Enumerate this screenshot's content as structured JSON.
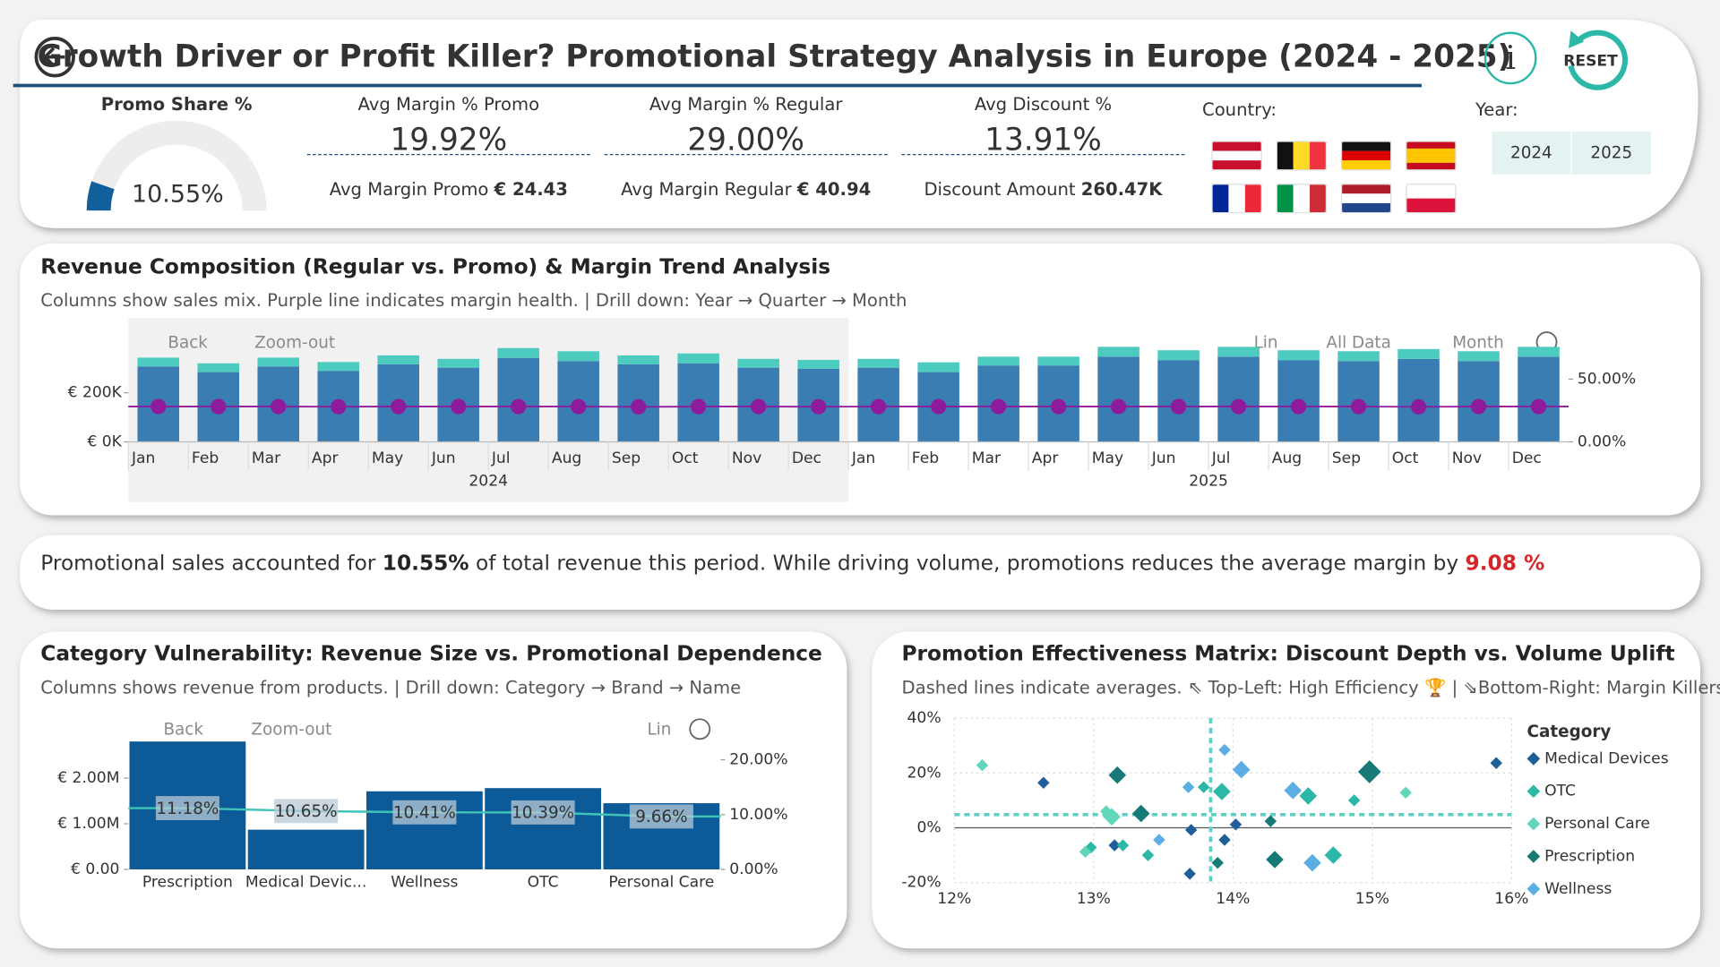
{
  "header": {
    "title": "Growth Driver or Profit Killer? Promotional Strategy Analysis in Europe (2024 - 2025)",
    "reset": "RESET"
  },
  "kpis": {
    "promo_share": {
      "label": "Promo Share %",
      "value": 10.55,
      "value_label": "10.55%",
      "range": [
        0,
        100
      ],
      "color": "#11609c"
    },
    "cards": [
      {
        "label": "Avg Margin % Promo",
        "value": "19.92%",
        "sub_label": "Avg Margin Promo",
        "sub_value": "€ 24.43"
      },
      {
        "label": "Avg Margin % Regular",
        "value": "29.00%",
        "sub_label": "Avg Margin Regular",
        "sub_value": "€ 40.94"
      },
      {
        "label": "Avg Discount %",
        "value": "13.91%",
        "sub_label": "Discount Amount",
        "sub_value": "260.47K"
      }
    ]
  },
  "filters": {
    "country_label": "Country:",
    "year_label": "Year:",
    "years": [
      "2024",
      "2025"
    ]
  },
  "insight": {
    "parts": [
      "Promotional sales accounted for ",
      "10.55%",
      " of total revenue this period. While driving volume, promotions reduces the average margin by ",
      "9.08 %"
    ]
  },
  "chart_data": [
    {
      "type": "stacked_bar_line",
      "title": "Revenue Composition (Regular vs. Promo) & Margin Trend Analysis",
      "subtitle": "Columns show sales mix. Purple line indicates margin health. | Drill down: Year → Quarter → Month",
      "toolbar": [
        "Back",
        "Zoom-out",
        "Lin",
        "All Data",
        "Month"
      ],
      "categories": [
        "Jan",
        "Feb",
        "Mar",
        "Apr",
        "May",
        "Jun",
        "Jul",
        "Aug",
        "Sep",
        "Oct",
        "Nov",
        "Dec",
        "Jan",
        "Feb",
        "Mar",
        "Apr",
        "May",
        "Jun",
        "Jul",
        "Aug",
        "Sep",
        "Oct",
        "Nov",
        "Dec"
      ],
      "groups": [
        "2024",
        "2025"
      ],
      "series": [
        {
          "type": "bar",
          "color": "#3a7db2",
          "values": [
            307000,
            284000,
            307000,
            289000,
            316000,
            302000,
            342000,
            329000,
            316000,
            320000,
            302000,
            298000,
            302000,
            284000,
            311000,
            311000,
            347000,
            333000,
            347000,
            333000,
            329000,
            338000,
            329000,
            347000
          ]
        },
        {
          "type": "bar",
          "color": "#4ccbbf",
          "values": [
            36000,
            36000,
            36000,
            36000,
            36000,
            36000,
            40000,
            40000,
            36000,
            40000,
            36000,
            36000,
            36000,
            40000,
            36000,
            36000,
            40000,
            40000,
            40000,
            40000,
            40000,
            40000,
            40000,
            40000
          ]
        },
        {
          "type": "line",
          "axis": "y2",
          "color": "#8e1a9c",
          "values": [
            28.1,
            28.1,
            28.1,
            28.0,
            28.1,
            28.1,
            28.1,
            28.1,
            27.9,
            28.1,
            28.1,
            28.0,
            28.1,
            28.1,
            28.1,
            28.1,
            28.1,
            28.1,
            28.1,
            28.1,
            28.1,
            27.9,
            28.1,
            28.1
          ]
        }
      ],
      "ylim": [
        0,
        460000
      ],
      "yticks": [
        {
          "value": 0,
          "label": "€ 0K"
        },
        {
          "value": 200000,
          "label": "€ 200K"
        }
      ],
      "y2lim": [
        0,
        90
      ],
      "y2ticks": [
        {
          "value": 0,
          "label": "0.00%"
        },
        {
          "value": 50,
          "label": "50.00%"
        }
      ]
    },
    {
      "type": "bar_line",
      "title": "Category Vulnerability: Revenue Size vs. Promotional Dependence",
      "subtitle": "Columns shows revenue from products. | Drill down: Category → Brand → Name",
      "toolbar": [
        "Back",
        "Zoom-out",
        "Lin"
      ],
      "categories": [
        "Prescription",
        "Medical Devic...",
        "Wellness",
        "OTC",
        "Personal Care"
      ],
      "series": [
        {
          "type": "bar",
          "color": "#0d5a99",
          "values": [
            2800000,
            870000,
            1710000,
            1780000,
            1450000
          ]
        },
        {
          "type": "line",
          "axis": "y2",
          "color": "#3fc3b6",
          "values": [
            11.18,
            10.65,
            10.41,
            10.39,
            9.66
          ],
          "value_labels": [
            "11.18%",
            "10.65%",
            "10.41%",
            "10.39%",
            "9.66%"
          ]
        }
      ],
      "ylim": [
        0,
        3000000
      ],
      "yticks": [
        {
          "value": 0,
          "label": "€ 0.00"
        },
        {
          "value": 1000000,
          "label": "€ 1.00M"
        },
        {
          "value": 2000000,
          "label": "€ 2.00M"
        }
      ],
      "y2lim": [
        0,
        25
      ],
      "y2ticks": [
        {
          "value": 0,
          "label": "0.00%"
        },
        {
          "value": 10,
          "label": "10.00%"
        },
        {
          "value": 20,
          "label": "20.00%"
        }
      ]
    },
    {
      "type": "scatter",
      "title": "Promotion Effectiveness Matrix: Discount Depth vs. Volume Uplift",
      "subtitle": "Dashed lines indicate averages. ⇖ Top-Left: High Efficiency 🏆 | ⇘Bottom-Right: Margin Killers ...",
      "legend_title": "Category",
      "legend": "right",
      "grid": true,
      "avg_x": 13.84,
      "avg_y": 4.8,
      "avg_color": "#5fcfc4",
      "series": [
        {
          "name": "Medical Devices",
          "color": "#1f5f99",
          "x": [
            12.64,
            13.15,
            13.7,
            13.94,
            14.02,
            13.69,
            15.89
          ],
          "y": [
            16.4,
            -6.4,
            -0.8,
            -4.4,
            1.2,
            -16.8,
            23.6
          ],
          "size": [
            1,
            1,
            1,
            1,
            1,
            1,
            1
          ]
        },
        {
          "name": "OTC",
          "color": "#2bb8a6",
          "x": [
            12.98,
            13.21,
            13.39,
            13.79,
            13.92,
            14.54,
            14.72,
            14.87
          ],
          "y": [
            -7.2,
            -6.4,
            -10,
            14.8,
            13.2,
            11.6,
            -10,
            10
          ],
          "size": [
            1,
            1,
            1,
            1,
            2,
            2,
            2,
            1
          ]
        },
        {
          "name": "Personal Care",
          "color": "#62d6bb",
          "x": [
            12.2,
            13.09,
            13.13,
            12.94,
            15.24
          ],
          "y": [
            22.8,
            6,
            4,
            -8.8,
            12.8
          ],
          "size": [
            1,
            1,
            2,
            1,
            1
          ]
        },
        {
          "name": "Prescription",
          "color": "#177a77",
          "x": [
            13.17,
            13.34,
            13.89,
            14.27,
            14.3,
            14.98
          ],
          "y": [
            19.2,
            5.2,
            -12.8,
            2.4,
            -11.6,
            20.4
          ],
          "size": [
            2,
            2,
            1,
            1,
            2,
            3
          ]
        },
        {
          "name": "Wellness",
          "color": "#5aaee3",
          "x": [
            13.47,
            13.68,
            13.94,
            14.06,
            14.43,
            14.57
          ],
          "y": [
            -4.4,
            14.8,
            28.4,
            21.2,
            13.6,
            -12.8
          ],
          "size": [
            1,
            1,
            1,
            2,
            2,
            2
          ]
        }
      ],
      "xlim": [
        12,
        16
      ],
      "xticks": [
        {
          "value": 12,
          "label": "12%"
        },
        {
          "value": 13,
          "label": "13%"
        },
        {
          "value": 14,
          "label": "14%"
        },
        {
          "value": 15,
          "label": "15%"
        },
        {
          "value": 16,
          "label": "16%"
        }
      ],
      "ylim": [
        -20,
        40
      ],
      "yticks": [
        {
          "value": -20,
          "label": "-20%"
        },
        {
          "value": 0,
          "label": "0%"
        },
        {
          "value": 20,
          "label": "20%"
        },
        {
          "value": 40,
          "label": "40%"
        }
      ]
    }
  ]
}
